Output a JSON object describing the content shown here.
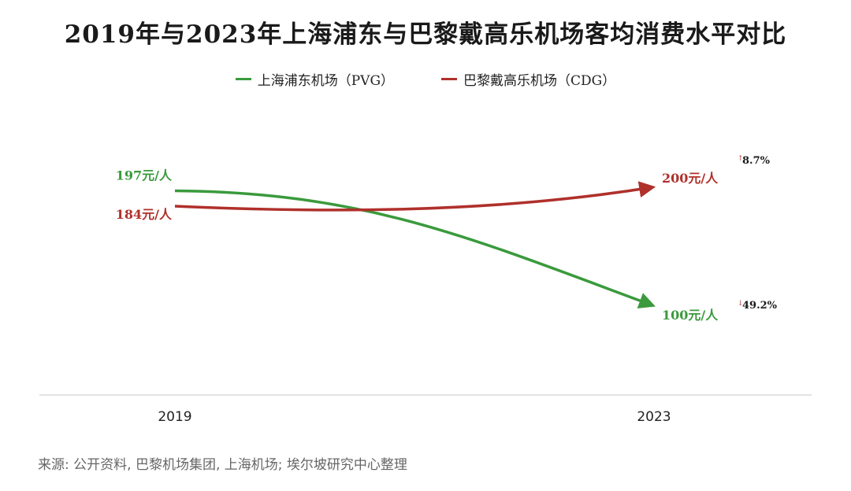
{
  "title": "2019年与2023年上海浦东与巴黎戴高乐机场客均消费水平对比",
  "legend": [
    {
      "label": "上海浦东机场（PVG）",
      "color": "#3a9a3c"
    },
    {
      "label": "巴黎戴高乐机场（CDG）",
      "color": "#b0302b"
    }
  ],
  "source": "来源: 公开资料, 巴黎机场集团, 上海机场; 埃尔坡研究中心整理",
  "colors": {
    "green": "#3a9a3c",
    "red": "#b0302b",
    "axis": "#d9d9d9"
  },
  "chart_data": {
    "type": "line",
    "categories": [
      "2019",
      "2023"
    ],
    "unit": "元/人",
    "ylim": [
      80,
      220
    ],
    "series": [
      {
        "name": "上海浦东机场（PVG）",
        "values": [
          197,
          100
        ],
        "change": "49.2%",
        "direction": "down",
        "labels": [
          "197元/人",
          "100元/人"
        ],
        "color": "#3a9a3c"
      },
      {
        "name": "巴黎戴高乐机场（CDG）",
        "values": [
          184,
          200
        ],
        "change": "8.7%",
        "direction": "up",
        "labels": [
          "184元/人",
          "200元/人"
        ],
        "color": "#b0302b"
      }
    ],
    "grid": false,
    "legend_position": "top-center"
  }
}
